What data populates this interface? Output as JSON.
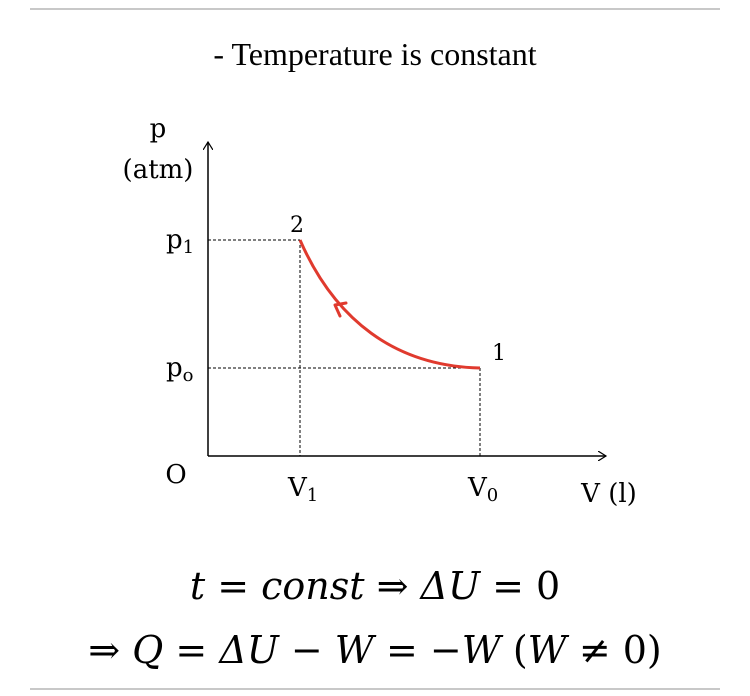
{
  "heading": "- Temperature is constant",
  "diagram": {
    "y_axis_label_line1": "p",
    "y_axis_label_line2": "(atm)",
    "x_axis_label": "V (l)",
    "origin_label": "O",
    "p1_label": "p",
    "p1_sub": "1",
    "p0_label": "p",
    "p0_sub": "o",
    "v1_label": "V",
    "v1_sub": "1",
    "v0_label": "V",
    "v0_sub": "0",
    "point1_label": "1",
    "point2_label": "2",
    "curve_color": "#e03a2e"
  },
  "equations": {
    "line1": {
      "t": "t",
      "op1": " = ",
      "const": "const",
      "arrow": " ⇒ ",
      "dU": "ΔU",
      "op2": " = 0"
    },
    "line2": {
      "arrow": "⇒ ",
      "Q": "Q",
      "op1": " = ",
      "dU": "ΔU",
      "minus": " − ",
      "W1": "W",
      "op2": " = −",
      "W2": "W",
      "paren_open": " (",
      "W3": "W",
      "neq": " ≠ 0)"
    }
  }
}
